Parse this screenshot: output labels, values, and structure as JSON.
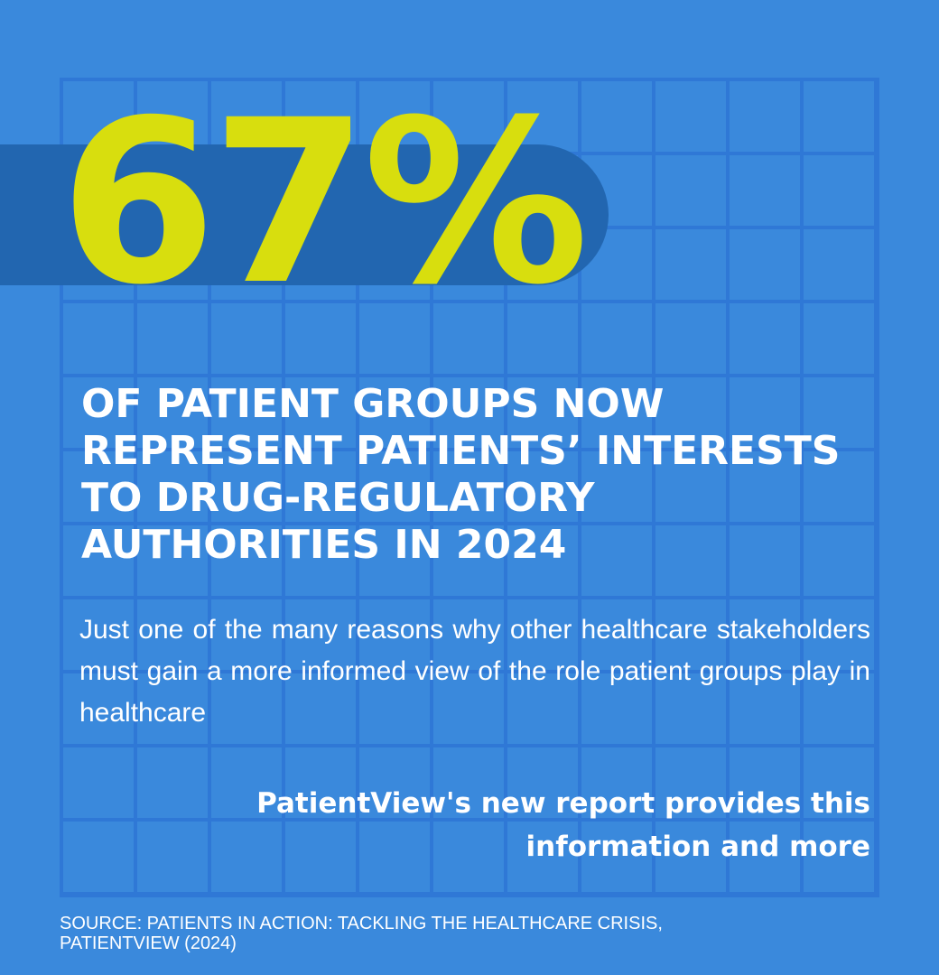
{
  "colors": {
    "background": "#3a89dc",
    "grid_lines": "#2f78d6",
    "band": "#2266b0",
    "accent": "#d8de0e",
    "text": "#ffffff"
  },
  "stat": {
    "value": "67%"
  },
  "headline": {
    "lines": [
      "OF PATIENT GROUPS NOW",
      "REPRESENT PATIENTS’ INTERESTS",
      "TO DRUG-REGULATORY",
      "AUTHORITIES IN 2024"
    ]
  },
  "body": {
    "text": "Just one of the many reasons why other healthcare stakeholders  must gain a more informed view of the role patient groups play in healthcare"
  },
  "cta": {
    "lines": [
      "PatientView's new report provides this",
      "information and more"
    ]
  },
  "source": {
    "lines": [
      "SOURCE: PATIENTS IN ACTION: TACKLING THE HEALTHCARE CRISIS,",
      "PATIENTVIEW (2024)"
    ]
  }
}
